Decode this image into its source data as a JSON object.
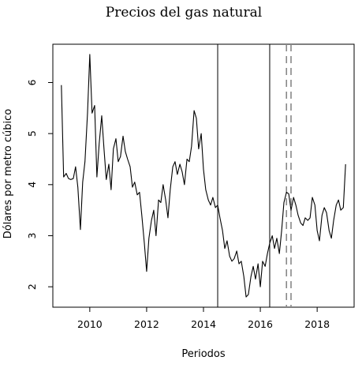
{
  "chart_data": {
    "type": "line",
    "title": "Precios del gas natural",
    "xlabel": "Periodos",
    "ylabel": "Dólares por metro cúbico",
    "xlim": [
      2008.7,
      2019.3
    ],
    "ylim": [
      1.6,
      6.75
    ],
    "x_ticks": [
      2010,
      2012,
      2014,
      2016,
      2018
    ],
    "y_ticks": [
      2,
      3,
      4,
      5,
      6
    ],
    "grid": false,
    "legend": "none",
    "series": [
      {
        "color": "#000000",
        "x": [
          2009.0,
          2009.08,
          2009.17,
          2009.25,
          2009.33,
          2009.42,
          2009.5,
          2009.58,
          2009.67,
          2009.75,
          2009.83,
          2009.92,
          2010.0,
          2010.08,
          2010.17,
          2010.25,
          2010.33,
          2010.42,
          2010.5,
          2010.58,
          2010.67,
          2010.75,
          2010.83,
          2010.92,
          2011.0,
          2011.08,
          2011.17,
          2011.25,
          2011.33,
          2011.42,
          2011.5,
          2011.58,
          2011.67,
          2011.75,
          2011.83,
          2011.92,
          2012.0,
          2012.08,
          2012.17,
          2012.25,
          2012.33,
          2012.42,
          2012.5,
          2012.58,
          2012.67,
          2012.75,
          2012.83,
          2012.92,
          2013.0,
          2013.08,
          2013.17,
          2013.25,
          2013.33,
          2013.42,
          2013.5,
          2013.58,
          2013.67,
          2013.75,
          2013.83,
          2013.92,
          2014.0,
          2014.08,
          2014.17,
          2014.25,
          2014.33,
          2014.42,
          2014.5,
          2014.58,
          2014.67,
          2014.75,
          2014.83,
          2014.92,
          2015.0,
          2015.08,
          2015.17,
          2015.25,
          2015.33,
          2015.42,
          2015.5,
          2015.58,
          2015.67,
          2015.75,
          2015.83,
          2015.92,
          2016.0,
          2016.08,
          2016.17,
          2016.25,
          2016.33,
          2016.42,
          2016.5,
          2016.58,
          2016.67,
          2016.75,
          2016.83,
          2016.92,
          2017.0,
          2017.08,
          2017.17,
          2017.25,
          2017.33,
          2017.42,
          2017.5,
          2017.58,
          2017.67,
          2017.75,
          2017.83,
          2017.92,
          2018.0,
          2018.08,
          2018.17,
          2018.25,
          2018.33,
          2018.42,
          2018.5,
          2018.58,
          2018.67,
          2018.75,
          2018.83,
          2018.92,
          2019.0
        ],
        "y": [
          5.95,
          4.15,
          4.22,
          4.12,
          4.1,
          4.12,
          4.35,
          3.95,
          3.12,
          4.05,
          4.45,
          5.4,
          6.55,
          5.4,
          5.55,
          4.15,
          4.8,
          5.35,
          4.7,
          4.1,
          4.4,
          3.9,
          4.7,
          4.9,
          4.45,
          4.55,
          4.95,
          4.65,
          4.5,
          4.35,
          3.95,
          4.05,
          3.8,
          3.85,
          3.4,
          2.85,
          2.3,
          2.95,
          3.3,
          3.5,
          3.0,
          3.7,
          3.65,
          4.0,
          3.7,
          3.35,
          3.9,
          4.35,
          4.45,
          4.2,
          4.4,
          4.25,
          4.0,
          4.5,
          4.45,
          4.75,
          5.45,
          5.3,
          4.7,
          5.0,
          4.3,
          3.9,
          3.7,
          3.6,
          3.75,
          3.55,
          3.6,
          3.35,
          3.1,
          2.75,
          2.9,
          2.6,
          2.5,
          2.55,
          2.7,
          2.45,
          2.5,
          2.2,
          1.8,
          1.85,
          2.2,
          2.4,
          2.15,
          2.45,
          2.0,
          2.5,
          2.4,
          2.65,
          2.85,
          3.0,
          2.75,
          2.95,
          2.65,
          3.1,
          3.65,
          3.85,
          3.82,
          3.5,
          3.75,
          3.6,
          3.4,
          3.25,
          3.2,
          3.35,
          3.3,
          3.35,
          3.75,
          3.6,
          3.1,
          2.9,
          3.4,
          3.55,
          3.45,
          3.1,
          2.95,
          3.3,
          3.6,
          3.7,
          3.5,
          3.55,
          4.4
        ]
      }
    ],
    "vlines": [
      {
        "x": 2014.5,
        "style": "solid"
      },
      {
        "x": 2016.33,
        "style": "solid"
      },
      {
        "x": 2016.92,
        "style": "dashed"
      },
      {
        "x": 2017.08,
        "style": "dashed"
      }
    ]
  }
}
